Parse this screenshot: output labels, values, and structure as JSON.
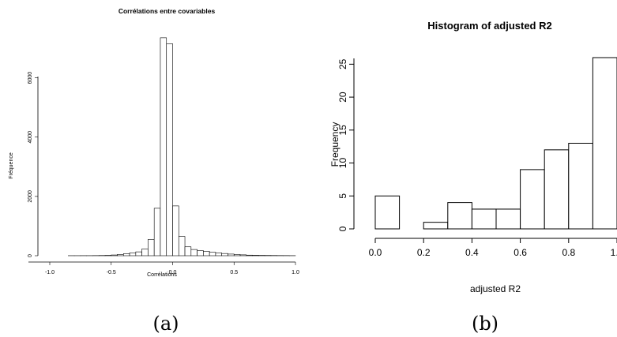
{
  "chart_data": [
    {
      "type": "bar",
      "title": "Corrélations entre covariables",
      "xlabel": "Corrélations",
      "ylabel": "Fréquence",
      "xlim": [
        -1.0,
        1.0
      ],
      "ylim": [
        0,
        7400
      ],
      "x_ticks": [
        "-1.0",
        "-0.5",
        "0.0",
        "0.5",
        "1.0"
      ],
      "y_ticks": [
        "0",
        "2000",
        "4000",
        "6000"
      ],
      "bin_width": 0.05,
      "bins_start": [
        -0.85,
        -0.8,
        -0.75,
        -0.7,
        -0.65,
        -0.6,
        -0.55,
        -0.5,
        -0.45,
        -0.4,
        -0.35,
        -0.3,
        -0.25,
        -0.2,
        -0.15,
        -0.1,
        -0.05,
        0.0,
        0.05,
        0.1,
        0.15,
        0.2,
        0.25,
        0.3,
        0.35,
        0.4,
        0.45,
        0.5,
        0.55,
        0.6,
        0.65,
        0.7,
        0.75,
        0.8,
        0.85,
        0.9,
        0.95
      ],
      "values": [
        2,
        2,
        3,
        3,
        5,
        8,
        12,
        25,
        45,
        70,
        95,
        130,
        230,
        550,
        1600,
        7350,
        7150,
        1680,
        650,
        300,
        210,
        175,
        150,
        115,
        95,
        75,
        55,
        40,
        30,
        20,
        15,
        12,
        10,
        8,
        6,
        5,
        3
      ],
      "caption": "(a)"
    },
    {
      "type": "bar",
      "title": "Histogram of adjusted R2",
      "xlabel": "adjusted R2",
      "ylabel": "Frequency",
      "xlim": [
        0.0,
        1.0
      ],
      "ylim": [
        0,
        26
      ],
      "x_ticks": [
        "0.0",
        "0.2",
        "0.4",
        "0.6",
        "0.8",
        "1.0"
      ],
      "y_ticks": [
        "0",
        "5",
        "10",
        "15",
        "20",
        "25"
      ],
      "bin_width": 0.1,
      "bins_start": [
        0.0,
        0.1,
        0.2,
        0.3,
        0.4,
        0.5,
        0.6,
        0.7,
        0.8,
        0.9
      ],
      "values": [
        5,
        0,
        1,
        4,
        3,
        3,
        9,
        12,
        13,
        26
      ],
      "caption": "(b)"
    }
  ]
}
